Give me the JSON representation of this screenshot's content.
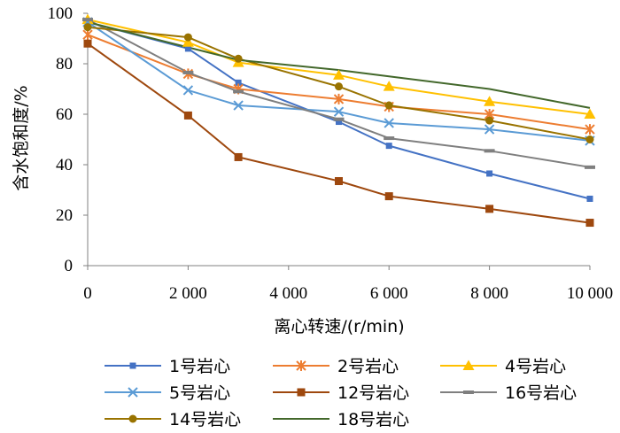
{
  "chart_data": {
    "type": "line",
    "xlabel": "离心转速/(r/min)",
    "ylabel": "含水饱和度/%",
    "xlim": [
      0,
      10000
    ],
    "ylim": [
      0,
      100
    ],
    "x_ticks": [
      0,
      2000,
      4000,
      6000,
      8000,
      10000
    ],
    "x_tick_labels": [
      "0",
      "2 000",
      "4 000",
      "6 000",
      "8 000",
      "10 000"
    ],
    "y_ticks": [
      0,
      20,
      40,
      60,
      80,
      100
    ],
    "y_tick_labels": [
      "0",
      "20",
      "40",
      "60",
      "80",
      "100"
    ],
    "grid": false,
    "legend_position": "bottom",
    "x": [
      0,
      2000,
      3000,
      5000,
      6000,
      8000,
      10000
    ],
    "series": [
      {
        "name": "1号岩心",
        "color": "#4472C4",
        "marker": "square-small",
        "values": [
          96.5,
          86,
          72.5,
          57,
          47.5,
          36.5,
          26.5
        ]
      },
      {
        "name": "2号岩心",
        "color": "#ED7D31",
        "marker": "star",
        "values": [
          91.5,
          76,
          70,
          66,
          63,
          60,
          54
        ]
      },
      {
        "name": "4号岩心",
        "color": "#FFC000",
        "marker": "triangle",
        "values": [
          97.5,
          88.5,
          80.5,
          75.5,
          71,
          65,
          60
        ]
      },
      {
        "name": "5号岩心",
        "color": "#5B9BD5",
        "marker": "x",
        "values": [
          96.5,
          69.5,
          63.5,
          61,
          56.5,
          54,
          49.5
        ]
      },
      {
        "name": "12号岩心",
        "color": "#9E480E",
        "marker": "square",
        "values": [
          88,
          59.5,
          43,
          33.5,
          27.5,
          22.5,
          17
        ]
      },
      {
        "name": "16号岩心",
        "color": "#7F7F7F",
        "marker": "dash",
        "values": [
          97.5,
          76.5,
          69,
          58,
          50.5,
          45.5,
          39
        ]
      },
      {
        "name": "14号岩心",
        "color": "#997300",
        "marker": "circle",
        "values": [
          94.5,
          90.5,
          82,
          71,
          63.5,
          57.5,
          50
        ]
      },
      {
        "name": "18号岩心",
        "color": "#43682B",
        "marker": "none",
        "values": [
          96.5,
          86.5,
          81.5,
          77.5,
          75,
          70,
          62.5
        ]
      }
    ]
  }
}
